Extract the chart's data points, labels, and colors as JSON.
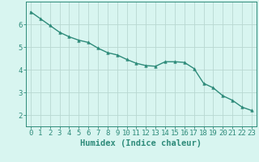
{
  "x": [
    0,
    1,
    2,
    3,
    4,
    5,
    6,
    7,
    8,
    9,
    10,
    11,
    12,
    13,
    14,
    15,
    16,
    17,
    18,
    19,
    20,
    21,
    22,
    23
  ],
  "y": [
    6.55,
    6.25,
    5.95,
    5.65,
    5.45,
    5.3,
    5.2,
    4.95,
    4.75,
    4.65,
    4.45,
    4.28,
    4.18,
    4.15,
    4.35,
    4.35,
    4.32,
    4.05,
    3.4,
    3.2,
    2.85,
    2.65,
    2.35,
    2.2
  ],
  "line_color": "#2e8b7a",
  "marker": "^",
  "marker_size": 2.5,
  "bg_color": "#d8f5f0",
  "grid_color": "#b8d8d2",
  "axis_color": "#2e8b7a",
  "tick_color": "#2e8b7a",
  "xlabel": "Humidex (Indice chaleur)",
  "xlim": [
    -0.5,
    23.5
  ],
  "ylim": [
    1.5,
    7.0
  ],
  "yticks": [
    2,
    3,
    4,
    5,
    6
  ],
  "xticks": [
    0,
    1,
    2,
    3,
    4,
    5,
    6,
    7,
    8,
    9,
    10,
    11,
    12,
    13,
    14,
    15,
    16,
    17,
    18,
    19,
    20,
    21,
    22,
    23
  ],
  "tick_fontsize": 6.5,
  "label_fontsize": 7.5
}
